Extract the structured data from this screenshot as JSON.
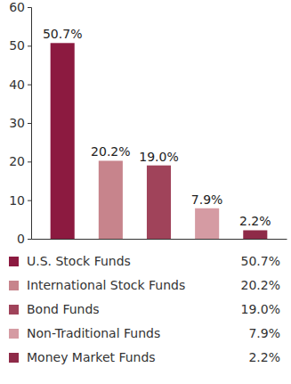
{
  "chart_data": {
    "type": "bar",
    "categories": [
      "U.S. Stock Funds",
      "International Stock Funds",
      "Bond Funds",
      "Non-Traditional Funds",
      "Money Market Funds"
    ],
    "values": [
      50.7,
      20.2,
      19.0,
      7.9,
      2.2
    ],
    "value_labels": [
      "50.7%",
      "20.2%",
      "19.0%",
      "7.9%",
      "2.2%"
    ],
    "colors": [
      "#8c1a40",
      "#c7848c",
      "#a0435a",
      "#d59ba3",
      "#8e2a48"
    ],
    "ylim": [
      0,
      60
    ],
    "yticks": [
      0,
      10,
      20,
      30,
      40,
      50,
      60
    ],
    "grid": false,
    "data_labels": true,
    "tick_labels": "y",
    "legend": "bottom"
  }
}
